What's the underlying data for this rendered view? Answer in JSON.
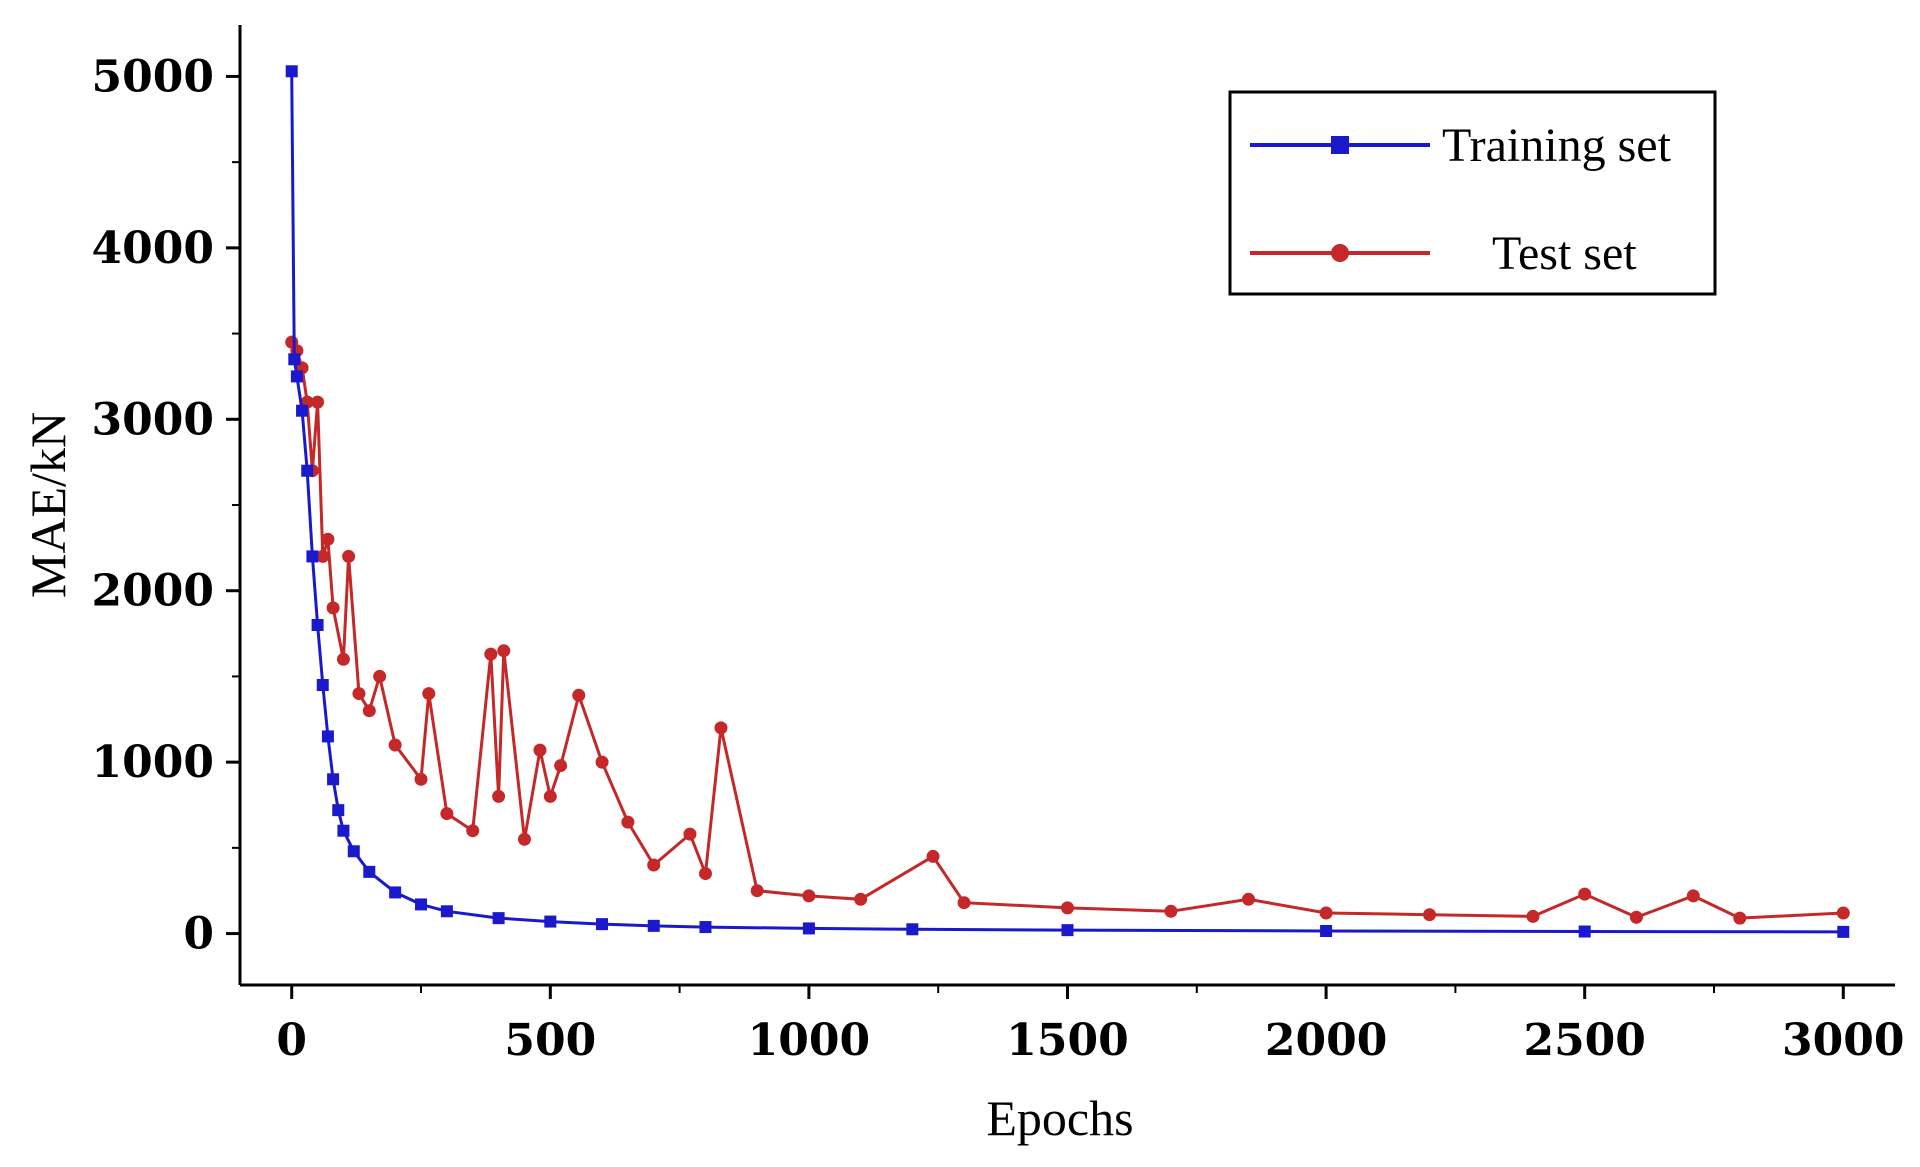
{
  "chart_data": {
    "type": "line",
    "title": "",
    "xlabel": "Epochs",
    "ylabel": "MAE/kN",
    "xlim": [
      -100,
      3100
    ],
    "ylim": [
      -300,
      5300
    ],
    "xticks": [
      0,
      500,
      1000,
      1500,
      2000,
      2500,
      3000
    ],
    "xtick_labels": [
      "0",
      "500",
      "1000",
      "1500",
      "2000",
      "2500",
      "3000"
    ],
    "yticks": [
      0,
      1000,
      2000,
      3000,
      4000,
      5000
    ],
    "ytick_labels": [
      "0",
      "1000",
      "2000",
      "3000",
      "4000",
      "5000"
    ],
    "grid": false,
    "legend_position": "top-right",
    "series": [
      {
        "name": "Training set",
        "color": "#1a1acc",
        "marker": "square",
        "x": [
          0,
          5,
          10,
          20,
          30,
          40,
          50,
          60,
          70,
          80,
          90,
          100,
          120,
          150,
          200,
          250,
          300,
          400,
          500,
          600,
          700,
          800,
          1000,
          1200,
          1500,
          2000,
          2500,
          3000
        ],
        "y": [
          5030,
          3350,
          3250,
          3050,
          2700,
          2200,
          1800,
          1450,
          1150,
          900,
          720,
          600,
          480,
          360,
          240,
          170,
          130,
          90,
          70,
          55,
          45,
          38,
          30,
          25,
          20,
          15,
          12,
          10
        ]
      },
      {
        "name": "Test set",
        "color": "#c42828",
        "marker": "circle",
        "x": [
          0,
          10,
          20,
          30,
          40,
          50,
          60,
          70,
          80,
          100,
          110,
          130,
          150,
          170,
          200,
          250,
          265,
          300,
          350,
          385,
          400,
          410,
          450,
          480,
          500,
          520,
          555,
          600,
          650,
          700,
          770,
          800,
          830,
          900,
          1000,
          1100,
          1240,
          1300,
          1500,
          1700,
          1850,
          2000,
          2200,
          2400,
          2500,
          2600,
          2710,
          2800,
          3000
        ],
        "y": [
          3450,
          3400,
          3300,
          3100,
          2700,
          3100,
          2200,
          2300,
          1900,
          1600,
          2200,
          1400,
          1300,
          1500,
          1100,
          900,
          1400,
          700,
          600,
          1630,
          800,
          1650,
          550,
          1070,
          800,
          980,
          1390,
          1000,
          650,
          400,
          580,
          350,
          1200,
          250,
          220,
          200,
          450,
          180,
          150,
          130,
          200,
          120,
          110,
          100,
          230,
          95,
          220,
          90,
          120
        ]
      }
    ]
  }
}
